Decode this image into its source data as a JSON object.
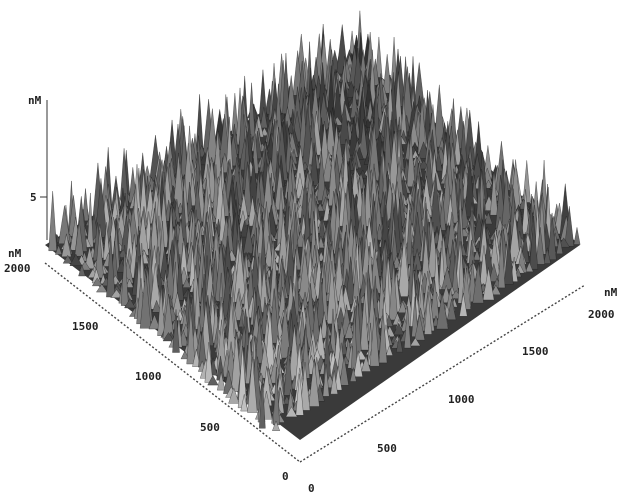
{
  "chart_data": {
    "type": "surface",
    "description": "",
    "z_axis": {
      "unit_label": "nM",
      "ticks": [
        {
          "value": 5,
          "label": "5"
        }
      ]
    },
    "y_axis": {
      "unit_label": "nM",
      "range": [
        0,
        2000
      ],
      "ticks": [
        {
          "value": 2000,
          "label": "2000"
        },
        {
          "value": 1500,
          "label": "1500"
        },
        {
          "value": 1000,
          "label": "1000"
        },
        {
          "value": 500,
          "label": "500"
        },
        {
          "value": 0,
          "label": "0"
        }
      ]
    },
    "x_axis": {
      "unit_label": "nM",
      "range": [
        0,
        2000
      ],
      "ticks": [
        {
          "value": 0,
          "label": "0"
        },
        {
          "value": 500,
          "label": "500"
        },
        {
          "value": 1000,
          "label": "1000"
        },
        {
          "value": 1500,
          "label": "1500"
        },
        {
          "value": 2000,
          "label": "2000"
        }
      ]
    },
    "colors": {
      "surface_dark": "#1e1e1e",
      "surface_light": "#b8b8b8",
      "axis": "#444444"
    }
  }
}
